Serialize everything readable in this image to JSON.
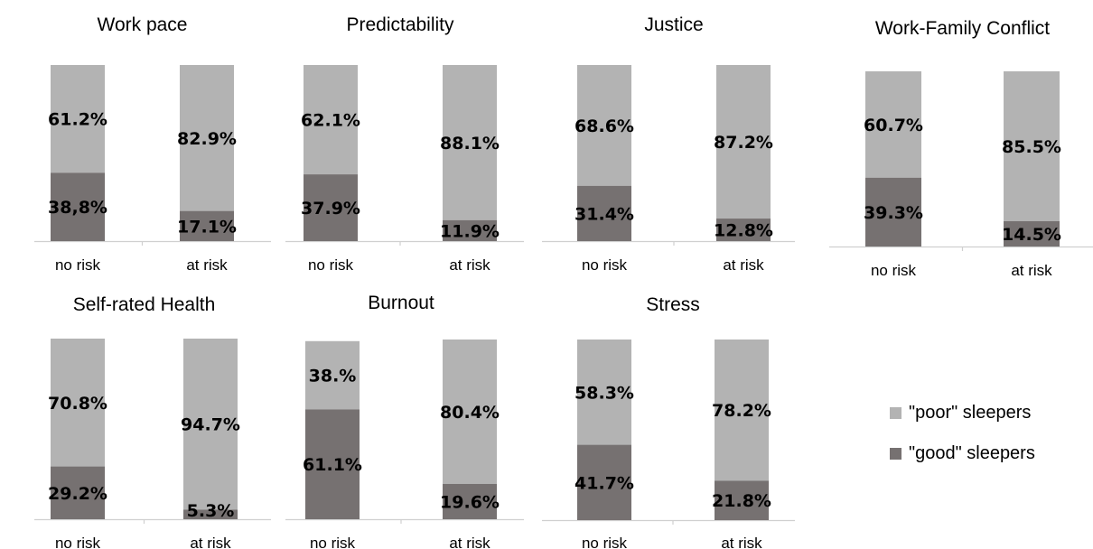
{
  "colors": {
    "poor": "#b3b3b3",
    "good": "#767171",
    "axis": "#d0d0d0"
  },
  "legend": [
    {
      "key": "poor",
      "label": "\"poor\" sleepers"
    },
    {
      "key": "good",
      "label": "\"good\" sleepers"
    }
  ],
  "chart_data": [
    {
      "type": "bar",
      "stacked": true,
      "title": "Work pace",
      "categories": [
        "no risk",
        "at risk"
      ],
      "series": [
        {
          "key": "good",
          "values": [
            38.8,
            17.1
          ],
          "labels": [
            "38,8%",
            "17.1%"
          ]
        },
        {
          "key": "poor",
          "values": [
            61.2,
            82.9
          ],
          "labels": [
            "61.2%",
            "82.9%"
          ]
        }
      ]
    },
    {
      "type": "bar",
      "stacked": true,
      "title": "Predictability",
      "categories": [
        "no risk",
        "at risk"
      ],
      "series": [
        {
          "key": "good",
          "values": [
            37.9,
            11.9
          ],
          "labels": [
            "37.9%",
            "11.9%"
          ]
        },
        {
          "key": "poor",
          "values": [
            62.1,
            88.1
          ],
          "labels": [
            "62.1%",
            "88.1%"
          ]
        }
      ]
    },
    {
      "type": "bar",
      "stacked": true,
      "title": "Justice",
      "categories": [
        "no risk",
        "at risk"
      ],
      "series": [
        {
          "key": "good",
          "values": [
            31.4,
            12.8
          ],
          "labels": [
            "31.4%",
            "12.8%"
          ]
        },
        {
          "key": "poor",
          "values": [
            68.6,
            87.2
          ],
          "labels": [
            "68.6%",
            "87.2%"
          ]
        }
      ]
    },
    {
      "type": "bar",
      "stacked": true,
      "title": "Work-Family Conflict",
      "categories": [
        "no risk",
        "at risk"
      ],
      "series": [
        {
          "key": "good",
          "values": [
            39.3,
            14.5
          ],
          "labels": [
            "39.3%",
            "14.5%"
          ]
        },
        {
          "key": "poor",
          "values": [
            60.7,
            85.5
          ],
          "labels": [
            "60.7%",
            "85.5%"
          ]
        }
      ]
    },
    {
      "type": "bar",
      "stacked": true,
      "title": "Self-rated Health",
      "categories": [
        "no risk",
        "at risk"
      ],
      "series": [
        {
          "key": "good",
          "values": [
            29.2,
            5.3
          ],
          "labels": [
            "29.2%",
            "5.3%"
          ]
        },
        {
          "key": "poor",
          "values": [
            70.8,
            94.7
          ],
          "labels": [
            "70.8%",
            "94.7%"
          ]
        }
      ]
    },
    {
      "type": "bar",
      "stacked": true,
      "title": "Burnout",
      "categories": [
        "no risk",
        "at risk"
      ],
      "series": [
        {
          "key": "good",
          "values": [
            61.1,
            19.6
          ],
          "labels": [
            "61.1%",
            "19.6%"
          ]
        },
        {
          "key": "poor",
          "values": [
            38.0,
            80.4
          ],
          "labels": [
            "38.%",
            "80.4%"
          ]
        }
      ]
    },
    {
      "type": "bar",
      "stacked": true,
      "title": "Stress",
      "categories": [
        "no risk",
        "at risk"
      ],
      "series": [
        {
          "key": "good",
          "values": [
            41.7,
            21.8
          ],
          "labels": [
            "41.7%",
            "21.8%"
          ]
        },
        {
          "key": "poor",
          "values": [
            58.3,
            78.2
          ],
          "labels": [
            "58.3%",
            "78.2%"
          ]
        }
      ]
    }
  ]
}
